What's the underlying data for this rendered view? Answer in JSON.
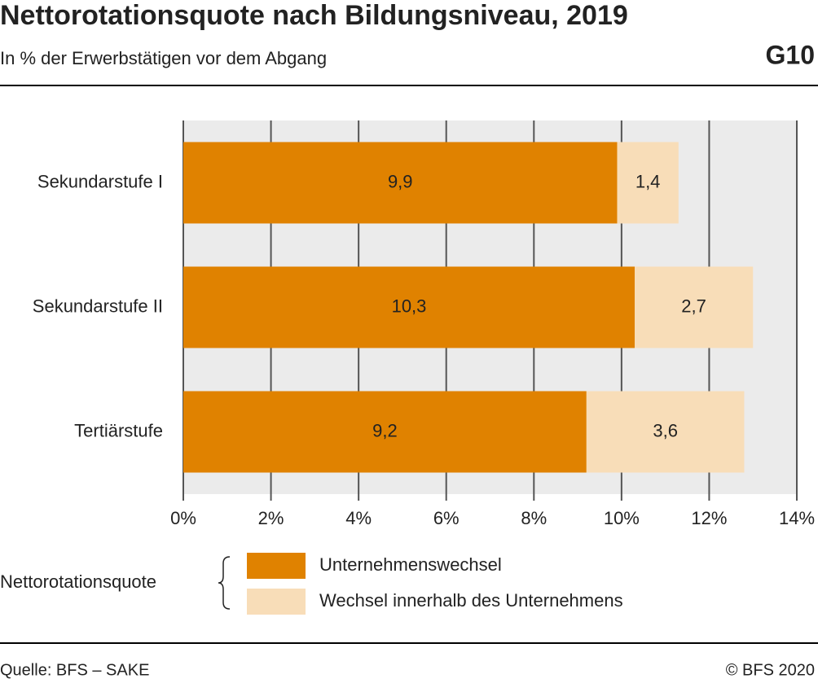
{
  "chart_data": {
    "type": "stacked-bar-horizontal",
    "title": "Nettorotationsquote nach Bildungsniveau, 2019",
    "subtitle": "In % der Erwerbstätigen vor dem Abgang",
    "chart_id": "G10",
    "categories": [
      "Sekundarstufe I",
      "Sekundarstufe II",
      "Tertiärstufe"
    ],
    "series": [
      {
        "name": "Unternehmenswechsel",
        "color": "#e08200",
        "values": [
          9.9,
          10.3,
          9.2
        ],
        "value_labels": [
          "9,9",
          "10,3",
          "9,2"
        ]
      },
      {
        "name": "Wechsel innerhalb des Unternehmens",
        "color": "#f8ddb8",
        "values": [
          1.4,
          2.7,
          3.6
        ],
        "value_labels": [
          "1,4",
          "2,7",
          "3,6"
        ]
      }
    ],
    "xlim": [
      0,
      14
    ],
    "xticks": [
      {
        "value": 0,
        "label": "0%"
      },
      {
        "value": 2,
        "label": "2%"
      },
      {
        "value": 4,
        "label": "4%"
      },
      {
        "value": 6,
        "label": "6%"
      },
      {
        "value": 8,
        "label": "8%"
      },
      {
        "value": 10,
        "label": "10%"
      },
      {
        "value": 12,
        "label": "12%"
      },
      {
        "value": 14,
        "label": "14%"
      }
    ],
    "grid": true,
    "legend_title": "Nettorotationsquote",
    "source": "Quelle: BFS – SAKE",
    "copyright": "© BFS 2020"
  }
}
